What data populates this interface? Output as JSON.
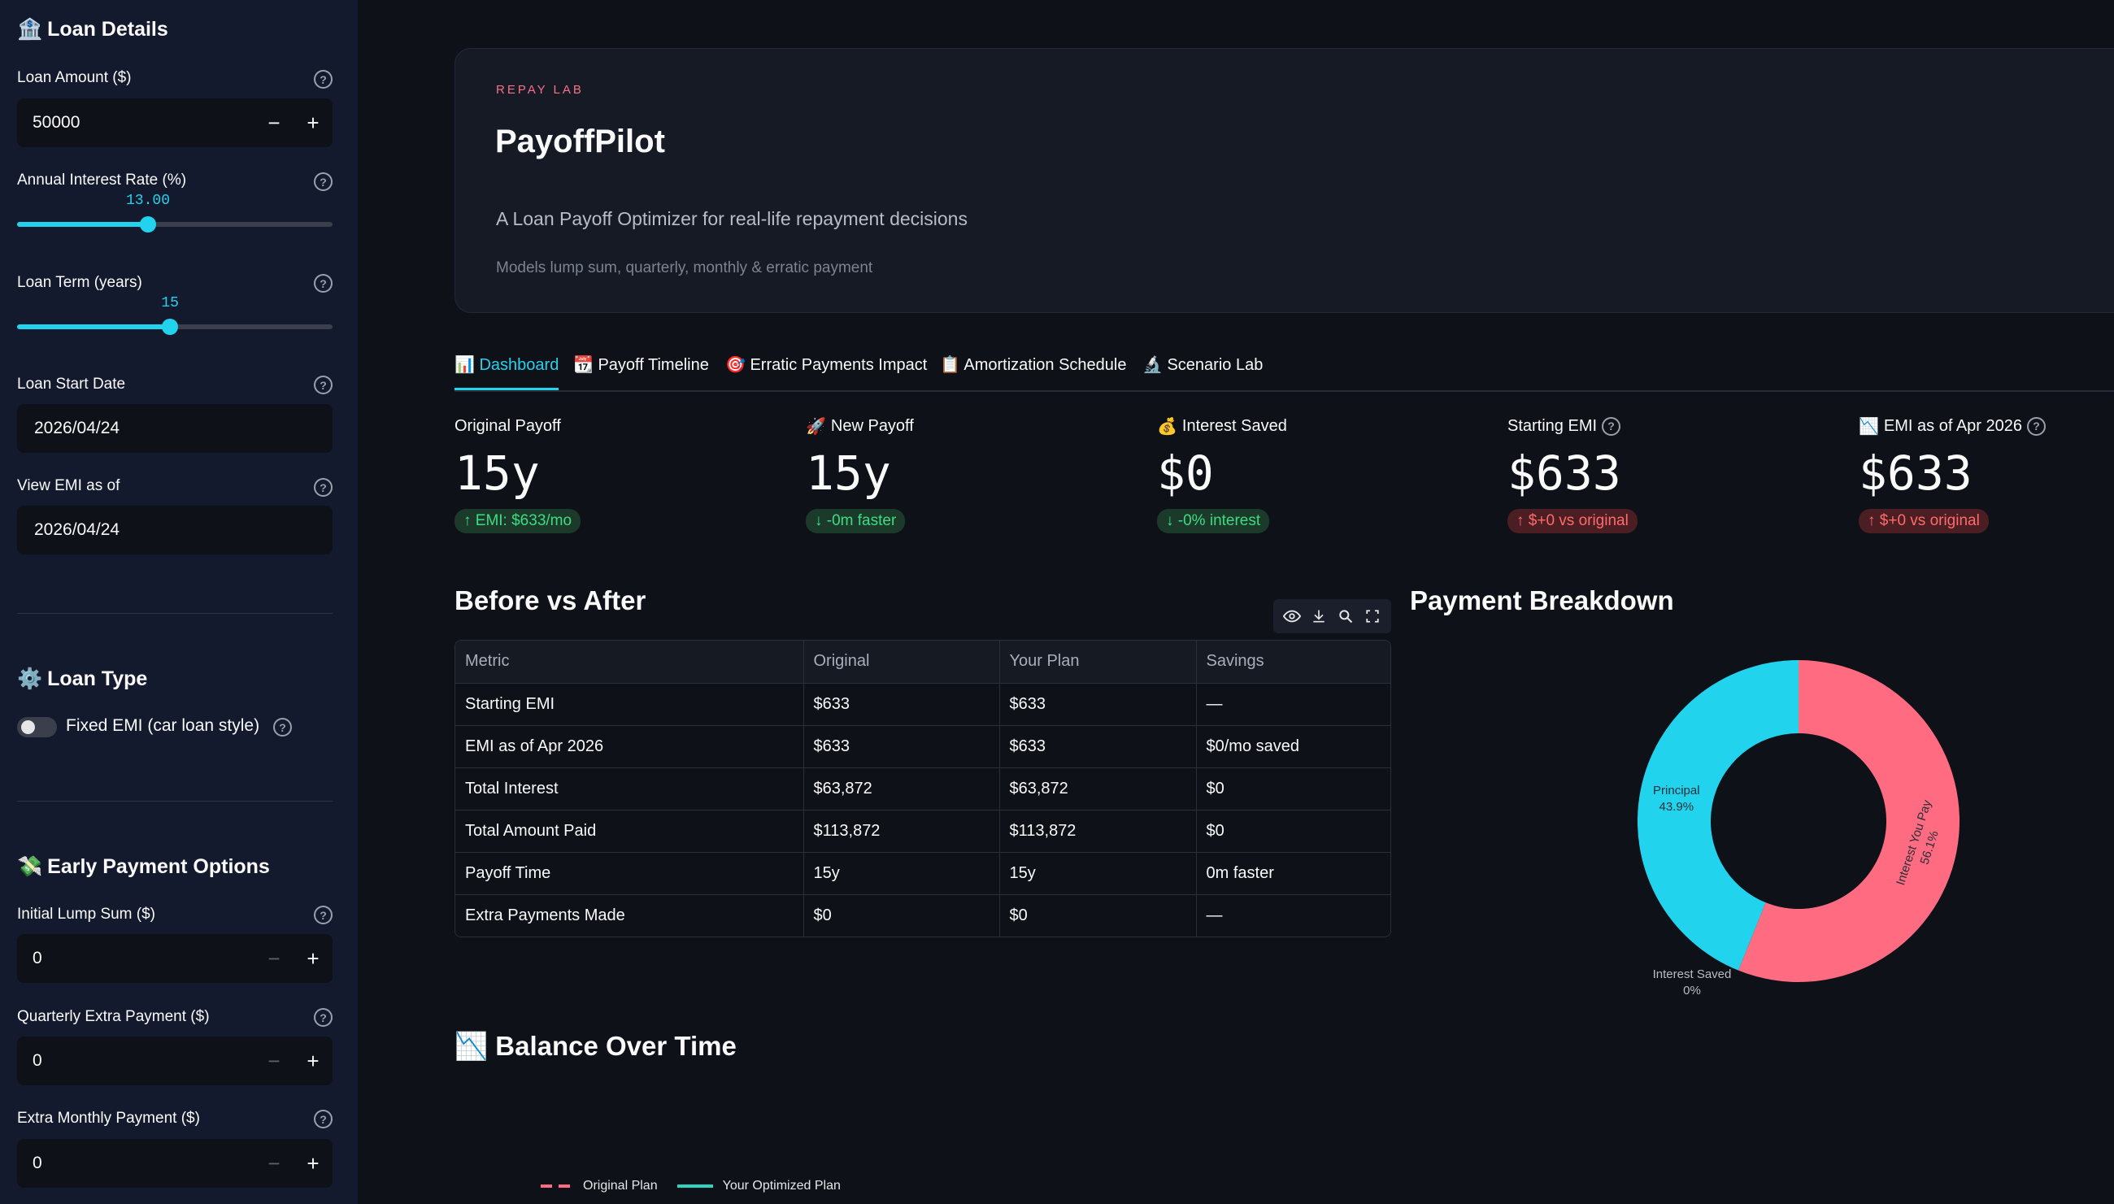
{
  "sidebar": {
    "loan_details_title": "Loan Details",
    "loan_amount": {
      "label": "Loan Amount ($)",
      "value": "50000"
    },
    "interest_rate": {
      "label": "Annual Interest Rate (%)",
      "value": "13.00",
      "fraction": 0.415
    },
    "loan_term": {
      "label": "Loan Term (years)",
      "value": "15",
      "fraction": 0.485
    },
    "start_date": {
      "label": "Loan Start Date",
      "value": "2026/04/24"
    },
    "view_emi": {
      "label": "View EMI as of",
      "value": "2026/04/24"
    },
    "loan_type_title": "Loan Type",
    "fixed_emi_label": "Fixed EMI (car loan style)",
    "early_payment_title": "Early Payment Options",
    "initial_lump_sum": {
      "label": "Initial Lump Sum ($)",
      "value": "0"
    },
    "quarterly_extra": {
      "label": "Quarterly Extra Payment ($)",
      "value": "0"
    },
    "extra_monthly": {
      "label": "Extra Monthly Payment ($)",
      "value": "0"
    }
  },
  "hero": {
    "eyebrow": "REPAY LAB",
    "title": "PayoffPilot",
    "subtitle": "A Loan Payoff Optimizer for real-life repayment decisions",
    "note": "Models lump sum, quarterly, monthly & erratic payment"
  },
  "tabs": [
    {
      "label": "Dashboard",
      "icon": "chart-icon"
    },
    {
      "label": "Payoff Timeline",
      "icon": "calendar-icon"
    },
    {
      "label": "Erratic Payments Impact",
      "icon": "target-icon"
    },
    {
      "label": "Amortization Schedule",
      "icon": "clipboard-icon"
    },
    {
      "label": "Scenario Lab",
      "icon": "microscope-icon"
    }
  ],
  "metrics": [
    {
      "label": "Original Payoff",
      "value": "15y",
      "delta": "EMI: $633/mo",
      "delta_dir": "up",
      "delta_color": "green"
    },
    {
      "label": "New Payoff",
      "value": "15y",
      "delta": "-0m faster",
      "delta_dir": "down",
      "delta_color": "green"
    },
    {
      "label": "Interest Saved",
      "value": "$0",
      "delta": "-0% interest",
      "delta_dir": "down",
      "delta_color": "green"
    },
    {
      "label": "Starting EMI",
      "value": "$633",
      "delta": "$+0 vs original",
      "delta_dir": "up",
      "delta_color": "red"
    },
    {
      "label": "EMI as of Apr 2026",
      "value": "$633",
      "delta": "$+0 vs original",
      "delta_dir": "up",
      "delta_color": "red"
    }
  ],
  "before_after": {
    "title": "Before vs After",
    "columns": [
      "Metric",
      "Original",
      "Your Plan",
      "Savings"
    ],
    "rows": [
      [
        "Starting EMI",
        "$633",
        "$633",
        "—"
      ],
      [
        "EMI as of Apr 2026",
        "$633",
        "$633",
        "$0/mo saved"
      ],
      [
        "Total Interest",
        "$63,872",
        "$63,872",
        "$0"
      ],
      [
        "Total Amount Paid",
        "$113,872",
        "$113,872",
        "$0"
      ],
      [
        "Payoff Time",
        "15y",
        "15y",
        "0m faster"
      ],
      [
        "Extra Payments Made",
        "$0",
        "$0",
        "—"
      ]
    ]
  },
  "payment_breakdown": {
    "title": "Payment Breakdown",
    "slices": [
      {
        "name": "Interest You Pay",
        "pct_label": "56.1%",
        "value": 56.1,
        "color": "#ff6b81"
      },
      {
        "name": "Principal",
        "pct_label": "43.9%",
        "value": 43.9,
        "color": "#22d3ee"
      },
      {
        "name": "Interest Saved",
        "pct_label": "0%",
        "value": 0,
        "color": "#3ddc84"
      }
    ]
  },
  "balance_over_time": {
    "title": "Balance Over Time",
    "legend": [
      {
        "name": "Original Plan",
        "color": "#ff6b81",
        "dash": true
      },
      {
        "name": "Your Optimized Plan",
        "color": "#2dd4bf",
        "dash": false
      }
    ]
  },
  "chart_data": {
    "type": "pie",
    "title": "Payment Breakdown",
    "categories": [
      "Interest You Pay",
      "Principal",
      "Interest Saved"
    ],
    "values": [
      56.1,
      43.9,
      0
    ],
    "hole": true,
    "colors": [
      "#ff6b81",
      "#22d3ee",
      "#3ddc84"
    ]
  },
  "colors": {
    "accent": "#22d3ee",
    "brand_pink": "#f87187",
    "bg": "#0e1117",
    "sidebar_bg": "#141a2e"
  }
}
